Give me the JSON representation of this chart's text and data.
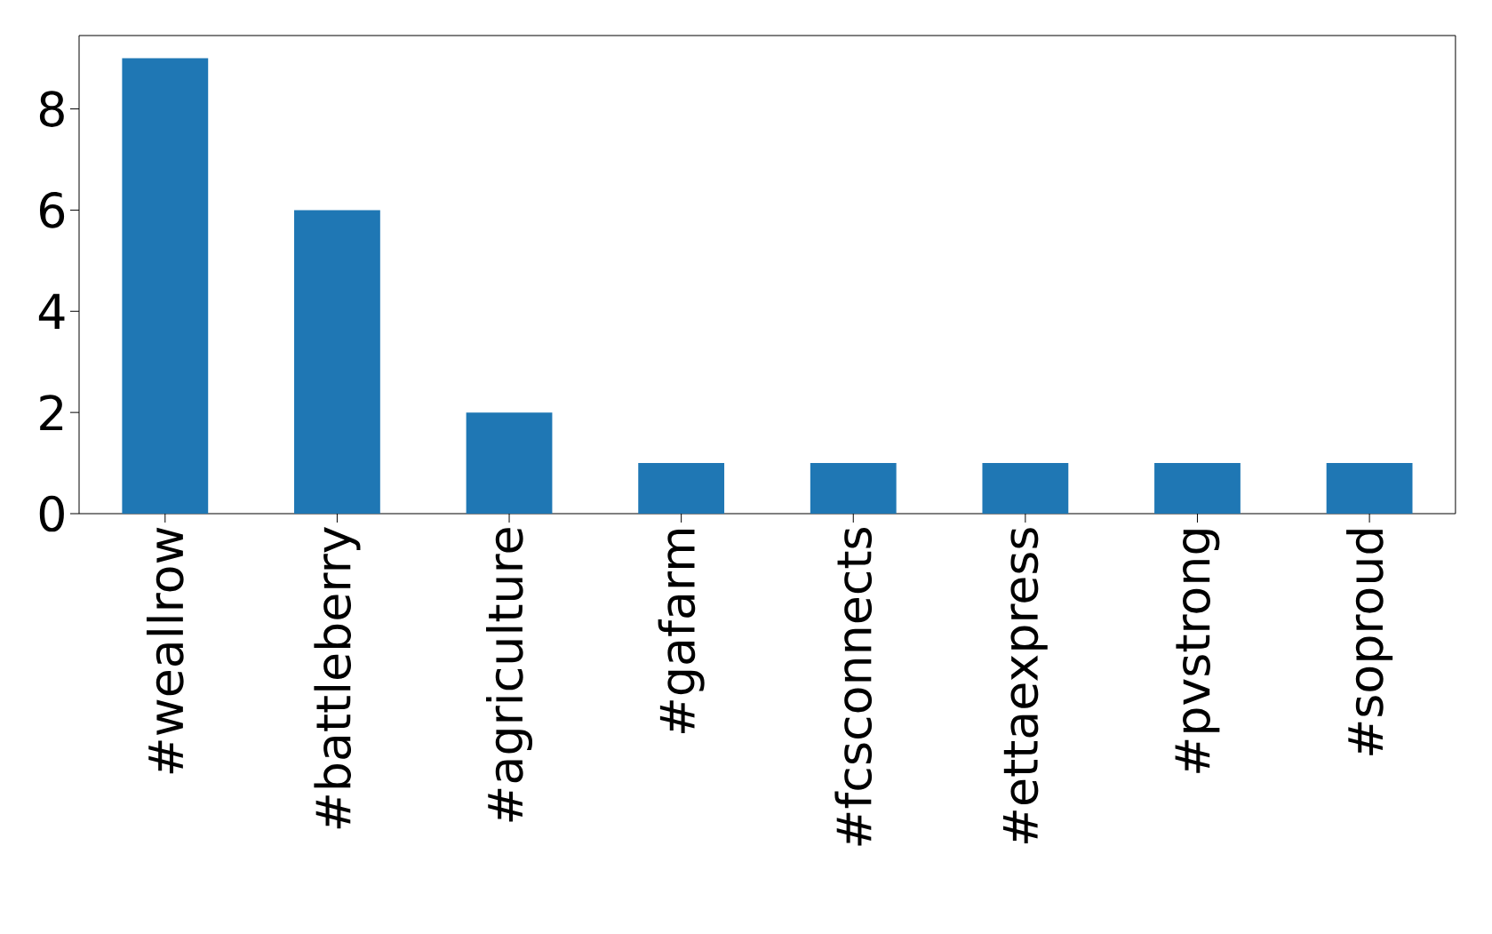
{
  "chart_data": {
    "type": "bar",
    "categories": [
      "#weallrow",
      "#battleberry",
      "#agriculture",
      "#gafarm",
      "#fcsconnects",
      "#ettaexpress",
      "#pvstrong",
      "#soproud"
    ],
    "values": [
      9,
      6,
      2,
      1,
      1,
      1,
      1,
      1
    ],
    "color": "#1f77b4",
    "ylim": [
      0,
      9.45
    ],
    "yticks": [
      0,
      2,
      4,
      6,
      8
    ]
  }
}
